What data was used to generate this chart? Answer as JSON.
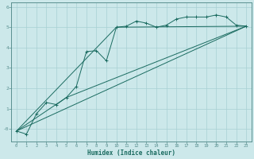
{
  "title": "",
  "xlabel": "Humidex (Indice chaleur)",
  "bg_color": "#cce8ea",
  "line_color": "#1a6b60",
  "grid_color": "#a8d0d4",
  "spine_color": "#5a9090",
  "xlim": [
    -0.5,
    23.5
  ],
  "ylim": [
    -0.6,
    6.2
  ],
  "yticks": [
    0,
    1,
    2,
    3,
    4,
    5,
    6
  ],
  "ytick_labels": [
    "-0",
    "1",
    "2",
    "3",
    "4",
    "5",
    "6"
  ],
  "xticks": [
    0,
    1,
    2,
    3,
    4,
    5,
    6,
    7,
    8,
    9,
    10,
    11,
    12,
    13,
    14,
    15,
    16,
    17,
    18,
    19,
    20,
    21,
    22,
    23
  ],
  "series": [
    [
      0,
      -0.1
    ],
    [
      1,
      -0.25
    ],
    [
      2,
      0.75
    ],
    [
      3,
      1.3
    ],
    [
      4,
      1.2
    ],
    [
      5,
      1.55
    ],
    [
      6,
      2.1
    ],
    [
      7,
      3.8
    ],
    [
      8,
      3.85
    ],
    [
      9,
      3.35
    ],
    [
      10,
      5.0
    ],
    [
      11,
      5.05
    ],
    [
      12,
      5.3
    ],
    [
      13,
      5.2
    ],
    [
      14,
      5.0
    ],
    [
      15,
      5.1
    ],
    [
      16,
      5.4
    ],
    [
      17,
      5.5
    ],
    [
      18,
      5.5
    ],
    [
      19,
      5.5
    ],
    [
      20,
      5.6
    ],
    [
      21,
      5.5
    ],
    [
      22,
      5.1
    ],
    [
      23,
      5.05
    ]
  ],
  "line1": [
    [
      0,
      -0.1
    ],
    [
      23,
      5.05
    ]
  ],
  "line2": [
    [
      0,
      -0.1
    ],
    [
      5,
      1.55
    ],
    [
      23,
      5.05
    ]
  ],
  "line3": [
    [
      0,
      -0.1
    ],
    [
      10,
      5.0
    ],
    [
      23,
      5.05
    ]
  ]
}
